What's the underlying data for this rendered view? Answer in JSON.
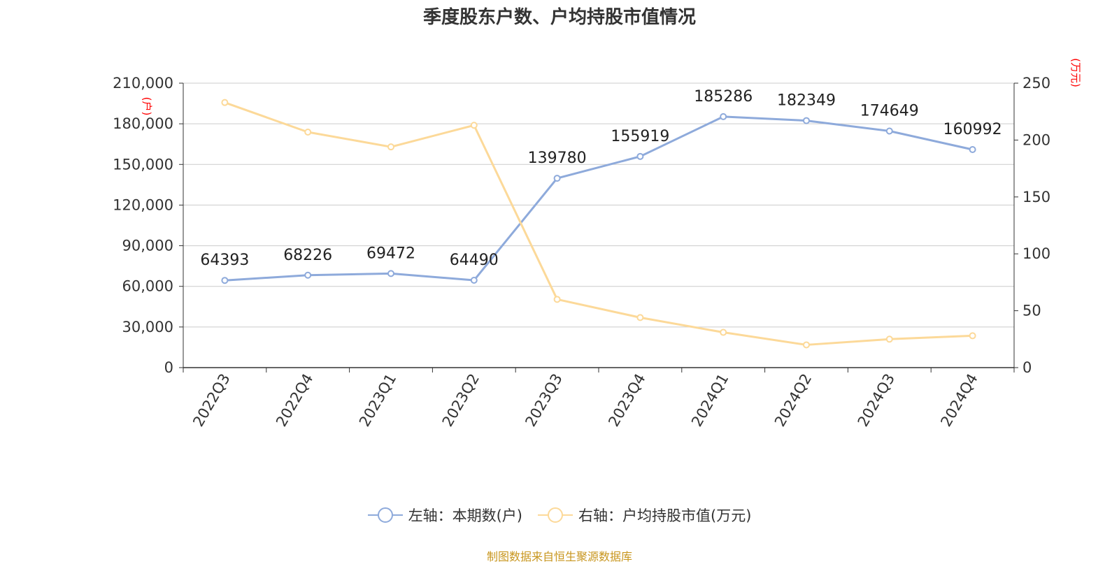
{
  "chart_data": {
    "type": "line",
    "title": "季度股东户数、户均持股市值情况",
    "categories": [
      "2022Q3",
      "2022Q4",
      "2023Q1",
      "2023Q2",
      "2023Q3",
      "2023Q4",
      "2024Q1",
      "2024Q2",
      "2024Q3",
      "2024Q4"
    ],
    "series": [
      {
        "name": "左轴：本期数(户)",
        "axis": "left",
        "color": "#8eaadb",
        "values": [
          64393,
          68226,
          69472,
          64490,
          139780,
          155919,
          185286,
          182349,
          174649,
          160992
        ],
        "data_labels": [
          "64393",
          "68226",
          "69472",
          "64490",
          "139780",
          "155919",
          "185286",
          "182349",
          "174649",
          "160992"
        ]
      },
      {
        "name": "右轴：户均持股市值(万元)",
        "axis": "right",
        "color": "#fcd999",
        "values": [
          233,
          207,
          194,
          213,
          60,
          44,
          31,
          20,
          25,
          28
        ]
      }
    ],
    "left_axis": {
      "unit": "(户)",
      "ylim": [
        0,
        210000
      ],
      "ticks": [
        0,
        30000,
        60000,
        90000,
        120000,
        150000,
        180000,
        210000
      ],
      "tick_labels": [
        "0",
        "30,000",
        "60,000",
        "90,000",
        "120,000",
        "150,000",
        "180,000",
        "210,000"
      ]
    },
    "right_axis": {
      "unit": "(万元)",
      "ylim": [
        0,
        250
      ],
      "ticks": [
        0,
        50,
        100,
        150,
        200,
        250
      ],
      "tick_labels": [
        "0",
        "50",
        "100",
        "150",
        "200",
        "250"
      ]
    },
    "grid": true,
    "legend_position": "bottom-center"
  },
  "footer": {
    "source": "制图数据来自恒生聚源数据库"
  },
  "colors": {
    "gridline": "#cccccc",
    "axis": "#333333",
    "unit_text": "#ff0000",
    "source_text": "#c8961e"
  }
}
